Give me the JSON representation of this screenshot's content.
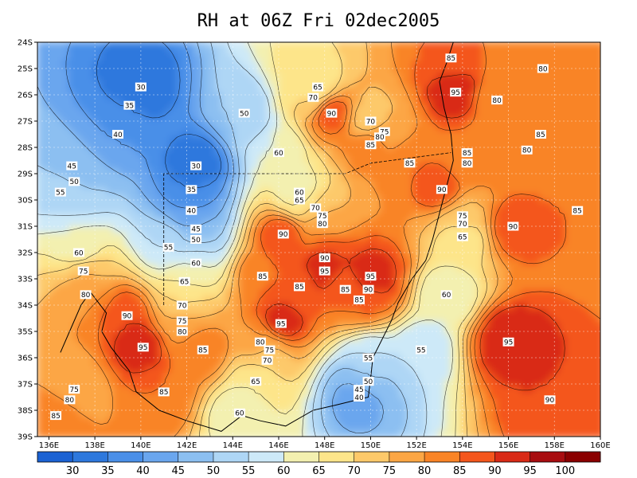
{
  "title": "RH at 06Z Fri 02dec2005",
  "chart_data": {
    "type": "heatmap",
    "variable": "RH",
    "lon_range": [
      135.5,
      160
    ],
    "lat_range": [
      -39,
      -24
    ],
    "x_ticks": [
      "136E",
      "138E",
      "140E",
      "142E",
      "144E",
      "146E",
      "148E",
      "150E",
      "152E",
      "154E",
      "156E",
      "158E",
      "160E"
    ],
    "y_ticks": [
      "24S",
      "25S",
      "26S",
      "27S",
      "28S",
      "29S",
      "30S",
      "31S",
      "32S",
      "33S",
      "34S",
      "35S",
      "36S",
      "37S",
      "38S",
      "39S"
    ],
    "colorbar": {
      "levels": [
        30,
        35,
        40,
        45,
        50,
        55,
        60,
        65,
        70,
        75,
        80,
        85,
        90,
        95,
        100
      ],
      "colors": [
        "#1b62d3",
        "#2d78dd",
        "#4a8fe8",
        "#6aa6ee",
        "#8cbff1",
        "#aed6f5",
        "#cde9f8",
        "#f3f0b0",
        "#fde58a",
        "#fdc96a",
        "#fca644",
        "#f98426",
        "#f4561c",
        "#d92a16",
        "#a80d10",
        "#8a0000"
      ]
    },
    "contour_labels": [
      {
        "v": "85",
        "lon": 153.5,
        "lat": -24.6
      },
      {
        "v": "80",
        "lon": 157.5,
        "lat": -25.0
      },
      {
        "v": "30",
        "lon": 140.0,
        "lat": -25.7
      },
      {
        "v": "65",
        "lon": 147.7,
        "lat": -25.7
      },
      {
        "v": "95",
        "lon": 153.7,
        "lat": -25.9
      },
      {
        "v": "70",
        "lon": 147.5,
        "lat": -26.1
      },
      {
        "v": "80",
        "lon": 155.5,
        "lat": -26.2
      },
      {
        "v": "35",
        "lon": 139.5,
        "lat": -26.4
      },
      {
        "v": "50",
        "lon": 144.5,
        "lat": -26.7
      },
      {
        "v": "90",
        "lon": 148.3,
        "lat": -26.7
      },
      {
        "v": "70",
        "lon": 150.0,
        "lat": -27.0
      },
      {
        "v": "75",
        "lon": 150.6,
        "lat": -27.4
      },
      {
        "v": "80",
        "lon": 150.4,
        "lat": -27.6
      },
      {
        "v": "40",
        "lon": 139.0,
        "lat": -27.5
      },
      {
        "v": "85",
        "lon": 157.4,
        "lat": -27.5
      },
      {
        "v": "85",
        "lon": 150.0,
        "lat": -27.9
      },
      {
        "v": "80",
        "lon": 156.8,
        "lat": -28.1
      },
      {
        "v": "60",
        "lon": 146.0,
        "lat": -28.2
      },
      {
        "v": "85",
        "lon": 154.2,
        "lat": -28.2
      },
      {
        "v": "85",
        "lon": 151.7,
        "lat": -28.6
      },
      {
        "v": "80",
        "lon": 154.2,
        "lat": -28.6
      },
      {
        "v": "45",
        "lon": 137.0,
        "lat": -28.7
      },
      {
        "v": "30",
        "lon": 142.4,
        "lat": -28.7
      },
      {
        "v": "50",
        "lon": 137.1,
        "lat": -29.3
      },
      {
        "v": "35",
        "lon": 142.2,
        "lat": -29.6
      },
      {
        "v": "90",
        "lon": 153.1,
        "lat": -29.6
      },
      {
        "v": "55",
        "lon": 136.5,
        "lat": -29.7
      },
      {
        "v": "60",
        "lon": 146.9,
        "lat": -29.7
      },
      {
        "v": "65",
        "lon": 146.9,
        "lat": -30.0
      },
      {
        "v": "70",
        "lon": 147.6,
        "lat": -30.3
      },
      {
        "v": "40",
        "lon": 142.2,
        "lat": -30.4
      },
      {
        "v": "85",
        "lon": 159.0,
        "lat": -30.4
      },
      {
        "v": "75",
        "lon": 147.9,
        "lat": -30.6
      },
      {
        "v": "75",
        "lon": 154.0,
        "lat": -30.6
      },
      {
        "v": "80",
        "lon": 147.9,
        "lat": -30.9
      },
      {
        "v": "70",
        "lon": 154.0,
        "lat": -30.9
      },
      {
        "v": "45",
        "lon": 142.4,
        "lat": -31.1
      },
      {
        "v": "90",
        "lon": 156.2,
        "lat": -31.0
      },
      {
        "v": "90",
        "lon": 146.2,
        "lat": -31.3
      },
      {
        "v": "65",
        "lon": 154.0,
        "lat": -31.4
      },
      {
        "v": "50",
        "lon": 142.4,
        "lat": -31.5
      },
      {
        "v": "55",
        "lon": 141.2,
        "lat": -31.8
      },
      {
        "v": "60",
        "lon": 137.3,
        "lat": -32.0
      },
      {
        "v": "90",
        "lon": 148.0,
        "lat": -32.2
      },
      {
        "v": "60",
        "lon": 142.4,
        "lat": -32.4
      },
      {
        "v": "95",
        "lon": 148.0,
        "lat": -32.7
      },
      {
        "v": "75",
        "lon": 137.5,
        "lat": -32.7
      },
      {
        "v": "85",
        "lon": 145.3,
        "lat": -32.9
      },
      {
        "v": "95",
        "lon": 150.0,
        "lat": -32.9
      },
      {
        "v": "65",
        "lon": 141.9,
        "lat": -33.1
      },
      {
        "v": "85",
        "lon": 146.9,
        "lat": -33.3
      },
      {
        "v": "85",
        "lon": 148.9,
        "lat": -33.4
      },
      {
        "v": "90",
        "lon": 149.9,
        "lat": -33.4
      },
      {
        "v": "80",
        "lon": 137.6,
        "lat": -33.6
      },
      {
        "v": "60",
        "lon": 153.3,
        "lat": -33.6
      },
      {
        "v": "85",
        "lon": 149.5,
        "lat": -33.8
      },
      {
        "v": "70",
        "lon": 141.8,
        "lat": -34.0
      },
      {
        "v": "90",
        "lon": 139.4,
        "lat": -34.4
      },
      {
        "v": "75",
        "lon": 141.8,
        "lat": -34.6
      },
      {
        "v": "95",
        "lon": 146.1,
        "lat": -34.7
      },
      {
        "v": "80",
        "lon": 141.8,
        "lat": -35.0
      },
      {
        "v": "80",
        "lon": 145.2,
        "lat": -35.4
      },
      {
        "v": "95",
        "lon": 156.0,
        "lat": -35.4
      },
      {
        "v": "95",
        "lon": 140.1,
        "lat": -35.6
      },
      {
        "v": "75",
        "lon": 145.6,
        "lat": -35.7
      },
      {
        "v": "85",
        "lon": 142.7,
        "lat": -35.7
      },
      {
        "v": "55",
        "lon": 152.2,
        "lat": -35.7
      },
      {
        "v": "55",
        "lon": 149.9,
        "lat": -36.0
      },
      {
        "v": "70",
        "lon": 145.5,
        "lat": -36.1
      },
      {
        "v": "65",
        "lon": 145.0,
        "lat": -36.9
      },
      {
        "v": "50",
        "lon": 149.9,
        "lat": -36.9
      },
      {
        "v": "75",
        "lon": 137.1,
        "lat": -37.2
      },
      {
        "v": "45",
        "lon": 149.5,
        "lat": -37.2
      },
      {
        "v": "85",
        "lon": 141.0,
        "lat": -37.3
      },
      {
        "v": "40",
        "lon": 149.5,
        "lat": -37.5
      },
      {
        "v": "80",
        "lon": 136.9,
        "lat": -37.6
      },
      {
        "v": "90",
        "lon": 157.8,
        "lat": -37.6
      },
      {
        "v": "60",
        "lon": 144.3,
        "lat": -38.1
      },
      {
        "v": "85",
        "lon": 136.3,
        "lat": -38.2
      }
    ]
  }
}
